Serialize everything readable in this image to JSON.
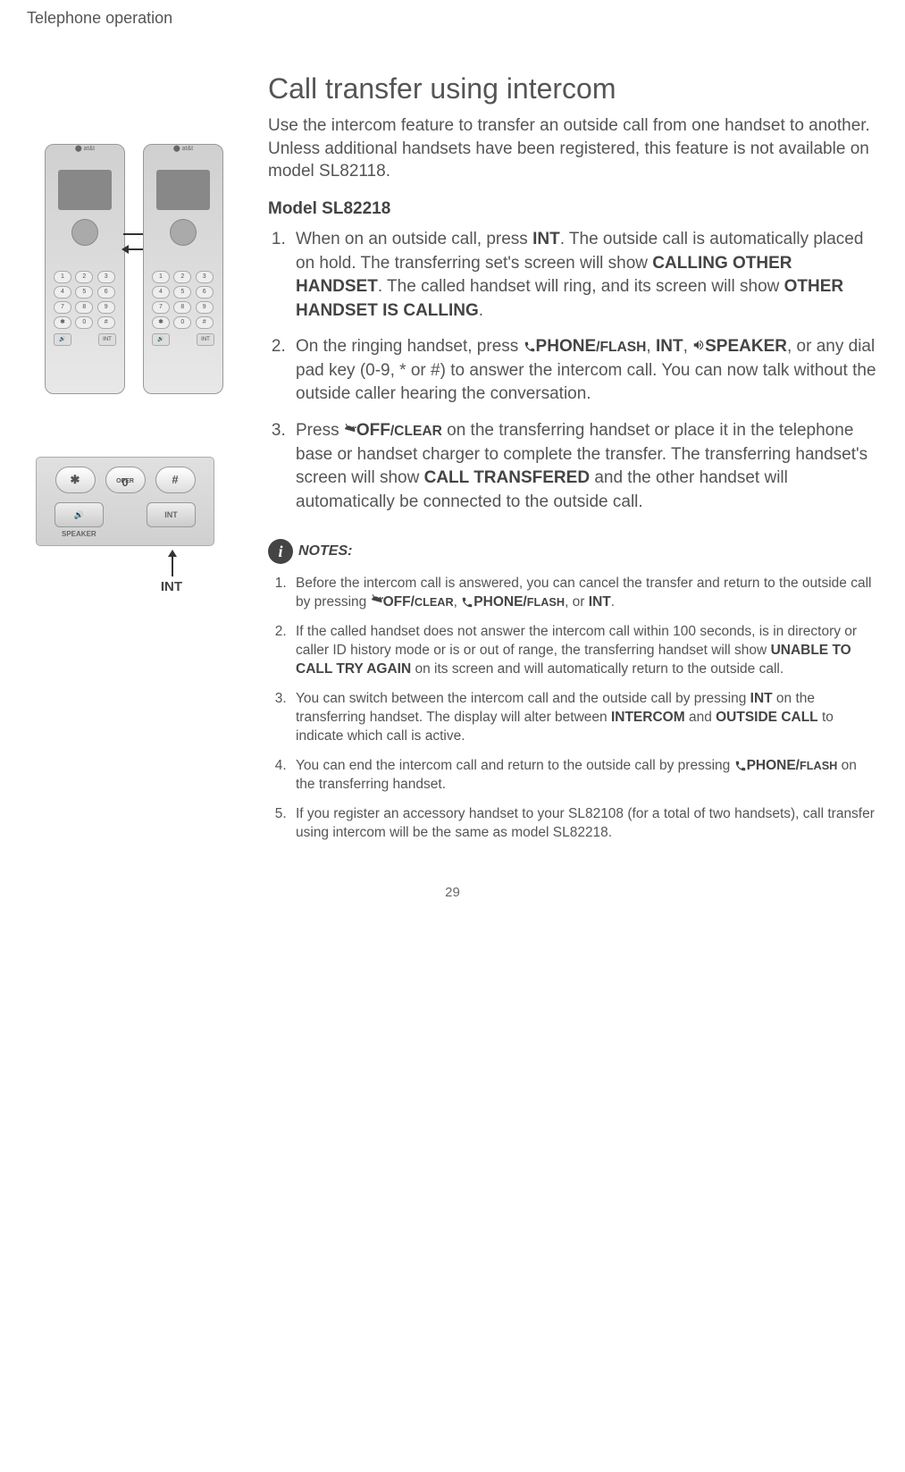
{
  "header": "Telephone operation",
  "page_number": "29",
  "section_title": "Call transfer using intercom",
  "intro_text_parts": {
    "p1": "Use the intercom feature to transfer an outside call from one handset to another. ",
    "p2": "Unless additional",
    "p3": " handsets have been registered, this feature is not available on model SL82118."
  },
  "model_heading": "Model SL82218",
  "int_label": "INT",
  "closeup": {
    "star": "✱",
    "oper": "OPER",
    "zero": "0",
    "hash": "#",
    "speaker_btn": "🔊",
    "int_btn": "INT",
    "speaker_label": "SPEAKER"
  },
  "steps": [
    {
      "parts": [
        {
          "t": "When on an outside call, press "
        },
        {
          "b": "INT"
        },
        {
          "t": ". The outside call is automatically placed on hold. The transferring set's screen will show "
        },
        {
          "b": "CALLING OTHER HANDSET"
        },
        {
          "t": ". The called handset will ring, and its screen will show "
        },
        {
          "b": "OTHER HANDSET IS CALLING"
        },
        {
          "t": "."
        }
      ]
    },
    {
      "parts": [
        {
          "t": "On the ringing handset, press "
        },
        {
          "icon": "phone"
        },
        {
          "b": "PHONE"
        },
        {
          "bs": "/FLASH"
        },
        {
          "t": ", "
        },
        {
          "b": "INT"
        },
        {
          "t": ", "
        },
        {
          "icon": "speaker"
        },
        {
          "b": "SPEAKER"
        },
        {
          "t": ", or any dial pad key (0-9, * or #) to answer the intercom call. You can now talk without the outside caller hearing the conversation."
        }
      ]
    },
    {
      "parts": [
        {
          "t": "Press "
        },
        {
          "icon": "off"
        },
        {
          "b": "OFF"
        },
        {
          "bs": "/CLEAR"
        },
        {
          "t": " on the transferring handset or place it in the telephone base or handset charger to complete the transfer. The transferring handset's screen will show "
        },
        {
          "b": "CALL TRANSFERED"
        },
        {
          "t": " and the other handset will automatically be connected to the outside call."
        }
      ]
    }
  ],
  "notes_label": "NOTES:",
  "notes": [
    {
      "parts": [
        {
          "t": "Before the intercom call is answered, you can cancel the transfer and return to the outside call by pressing "
        },
        {
          "icon": "off"
        },
        {
          "b": "OFF/"
        },
        {
          "bs": "CLEAR"
        },
        {
          "t": ", "
        },
        {
          "icon": "phone"
        },
        {
          "b": "PHONE/"
        },
        {
          "bs": "FLASH"
        },
        {
          "t": ", or "
        },
        {
          "b": "INT"
        },
        {
          "t": "."
        }
      ]
    },
    {
      "parts": [
        {
          "t": "If the called handset does not answer the intercom call within 100 seconds, is in directory or caller ID history mode or is or out of range, the transferring handset will show "
        },
        {
          "b": "UNABLE TO CALL TRY AGAIN"
        },
        {
          "t": " on its screen and will automatically return to the outside call."
        }
      ]
    },
    {
      "parts": [
        {
          "t": "You can switch between the intercom call and the outside call by pressing "
        },
        {
          "b": "INT"
        },
        {
          "t": " on the transferring handset. The display will alter between "
        },
        {
          "b": "INTERCOM"
        },
        {
          "t": " and "
        },
        {
          "b": "OUTSIDE CALL"
        },
        {
          "t": " to indicate which call is active."
        }
      ]
    },
    {
      "parts": [
        {
          "t": "You can end the intercom call and return to the outside call by pressing "
        },
        {
          "icon": "phone"
        },
        {
          "b": "PHONE/"
        },
        {
          "bs": "FLASH"
        },
        {
          "t": " on the transferring handset."
        }
      ]
    },
    {
      "parts": [
        {
          "t": "If you register an accessory handset to your SL82108 (for a total of two handsets), call transfer using intercom will be the same as model SL82218."
        }
      ]
    }
  ],
  "keypad_labels": [
    "1",
    "2",
    "3",
    "4",
    "5",
    "6",
    "7",
    "8",
    "9",
    "✱",
    "0",
    "#"
  ]
}
